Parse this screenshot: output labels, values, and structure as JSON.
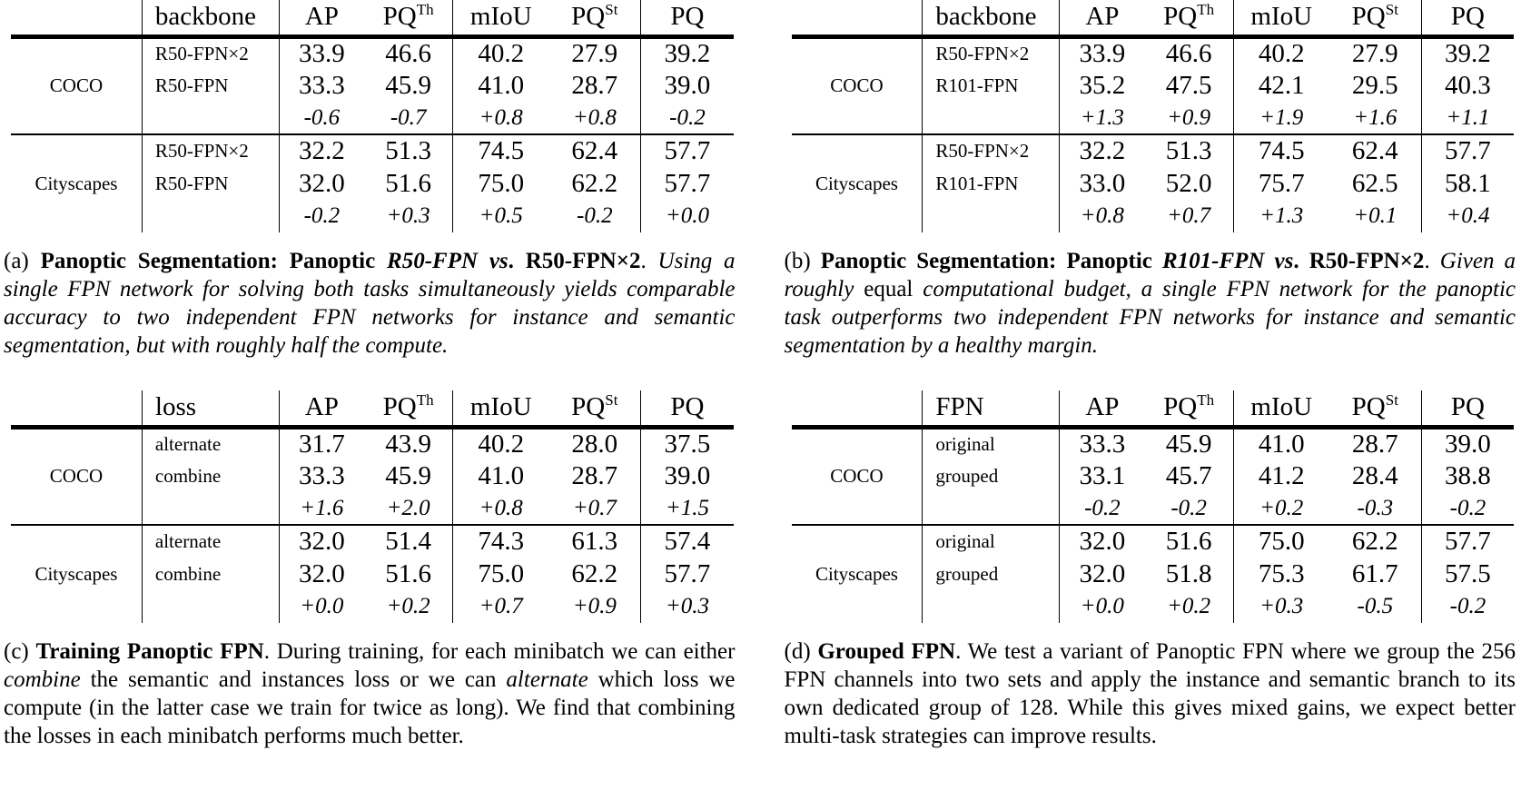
{
  "page": {
    "background": "#ffffff",
    "text_color": "#000000"
  },
  "panels": [
    {
      "label": "a",
      "table": {
        "sublabel_header": "backbone",
        "headers": [
          {
            "text": "AP",
            "sup": ""
          },
          {
            "text": "PQ",
            "sup": "Th"
          },
          {
            "text": "mIoU",
            "sup": ""
          },
          {
            "text": "PQ",
            "sup": "St"
          },
          {
            "text": "PQ",
            "sup": ""
          }
        ],
        "groups": [
          {
            "label": "COCO",
            "rows": [
              {
                "sublabel": "R50-FPN×2",
                "delta": false,
                "values": [
                  "33.9",
                  "46.6",
                  "40.2",
                  "27.9",
                  "39.2"
                ]
              },
              {
                "sublabel": "R50-FPN",
                "delta": false,
                "values": [
                  "33.3",
                  "45.9",
                  "41.0",
                  "28.7",
                  "39.0"
                ]
              },
              {
                "sublabel": "",
                "delta": true,
                "values": [
                  "-0.6",
                  "-0.7",
                  "+0.8",
                  "+0.8",
                  "-0.2"
                ]
              }
            ]
          },
          {
            "label": "Cityscapes",
            "rows": [
              {
                "sublabel": "R50-FPN×2",
                "delta": false,
                "values": [
                  "32.2",
                  "51.3",
                  "74.5",
                  "62.4",
                  "57.7"
                ]
              },
              {
                "sublabel": "R50-FPN",
                "delta": false,
                "values": [
                  "32.0",
                  "51.6",
                  "75.0",
                  "62.2",
                  "57.7"
                ]
              },
              {
                "sublabel": "",
                "delta": true,
                "values": [
                  "-0.2",
                  "+0.3",
                  "+0.5",
                  "-0.2",
                  "+0.0"
                ]
              }
            ]
          }
        ]
      },
      "caption": [
        {
          "t": "(a) ",
          "s": "n"
        },
        {
          "t": "Panoptic Segmentation: Panoptic ",
          "s": "b"
        },
        {
          "t": "R50-FPN vs",
          "s": "bi"
        },
        {
          "t": ". ",
          "s": "b"
        },
        {
          "t": "R50-FPN×2",
          "s": "b"
        },
        {
          "t": ". ",
          "s": "n"
        },
        {
          "t": "Using a single FPN network for solving both tasks simultaneously yields comparable accuracy to two independent FPN networks for instance and semantic segmentation, but with roughly half the compute.",
          "s": "i"
        }
      ]
    },
    {
      "label": "b",
      "table": {
        "sublabel_header": "backbone",
        "headers": [
          {
            "text": "AP",
            "sup": ""
          },
          {
            "text": "PQ",
            "sup": "Th"
          },
          {
            "text": "mIoU",
            "sup": ""
          },
          {
            "text": "PQ",
            "sup": "St"
          },
          {
            "text": "PQ",
            "sup": ""
          }
        ],
        "groups": [
          {
            "label": "COCO",
            "rows": [
              {
                "sublabel": "R50-FPN×2",
                "delta": false,
                "values": [
                  "33.9",
                  "46.6",
                  "40.2",
                  "27.9",
                  "39.2"
                ]
              },
              {
                "sublabel": "R101-FPN",
                "delta": false,
                "values": [
                  "35.2",
                  "47.5",
                  "42.1",
                  "29.5",
                  "40.3"
                ]
              },
              {
                "sublabel": "",
                "delta": true,
                "values": [
                  "+1.3",
                  "+0.9",
                  "+1.9",
                  "+1.6",
                  "+1.1"
                ]
              }
            ]
          },
          {
            "label": "Cityscapes",
            "rows": [
              {
                "sublabel": "R50-FPN×2",
                "delta": false,
                "values": [
                  "32.2",
                  "51.3",
                  "74.5",
                  "62.4",
                  "57.7"
                ]
              },
              {
                "sublabel": "R101-FPN",
                "delta": false,
                "values": [
                  "33.0",
                  "52.0",
                  "75.7",
                  "62.5",
                  "58.1"
                ]
              },
              {
                "sublabel": "",
                "delta": true,
                "values": [
                  "+0.8",
                  "+0.7",
                  "+1.3",
                  "+0.1",
                  "+0.4"
                ]
              }
            ]
          }
        ]
      },
      "caption": [
        {
          "t": "(b) ",
          "s": "n"
        },
        {
          "t": "Panoptic Segmentation: Panoptic ",
          "s": "b"
        },
        {
          "t": "R101-FPN vs",
          "s": "bi"
        },
        {
          "t": ". ",
          "s": "b"
        },
        {
          "t": "R50-FPN×2",
          "s": "b"
        },
        {
          "t": ". ",
          "s": "n"
        },
        {
          "t": "Given a roughly ",
          "s": "i"
        },
        {
          "t": "equal",
          "s": "n"
        },
        {
          "t": " computational budget, a single FPN network for the panoptic task outperforms two independent FPN networks for instance and semantic segmentation by a healthy margin.",
          "s": "i"
        }
      ]
    },
    {
      "label": "c",
      "table": {
        "sublabel_header": "loss",
        "headers": [
          {
            "text": "AP",
            "sup": ""
          },
          {
            "text": "PQ",
            "sup": "Th"
          },
          {
            "text": "mIoU",
            "sup": ""
          },
          {
            "text": "PQ",
            "sup": "St"
          },
          {
            "text": "PQ",
            "sup": ""
          }
        ],
        "groups": [
          {
            "label": "COCO",
            "rows": [
              {
                "sublabel": "alternate",
                "delta": false,
                "values": [
                  "31.7",
                  "43.9",
                  "40.2",
                  "28.0",
                  "37.5"
                ]
              },
              {
                "sublabel": "combine",
                "delta": false,
                "values": [
                  "33.3",
                  "45.9",
                  "41.0",
                  "28.7",
                  "39.0"
                ]
              },
              {
                "sublabel": "",
                "delta": true,
                "values": [
                  "+1.6",
                  "+2.0",
                  "+0.8",
                  "+0.7",
                  "+1.5"
                ]
              }
            ]
          },
          {
            "label": "Cityscapes",
            "rows": [
              {
                "sublabel": "alternate",
                "delta": false,
                "values": [
                  "32.0",
                  "51.4",
                  "74.3",
                  "61.3",
                  "57.4"
                ]
              },
              {
                "sublabel": "combine",
                "delta": false,
                "values": [
                  "32.0",
                  "51.6",
                  "75.0",
                  "62.2",
                  "57.7"
                ]
              },
              {
                "sublabel": "",
                "delta": true,
                "values": [
                  "+0.0",
                  "+0.2",
                  "+0.7",
                  "+0.9",
                  "+0.3"
                ]
              }
            ]
          }
        ]
      },
      "caption": [
        {
          "t": "(c) ",
          "s": "n"
        },
        {
          "t": "Training Panoptic FPN",
          "s": "b"
        },
        {
          "t": ". During training, for each minibatch we can either ",
          "s": "n"
        },
        {
          "t": "combine",
          "s": "i"
        },
        {
          "t": " the semantic and instances loss or we can ",
          "s": "n"
        },
        {
          "t": "alternate",
          "s": "i"
        },
        {
          "t": " which loss we compute (in the latter case we train for twice as long). We find that combining the losses in each minibatch performs much better.",
          "s": "n"
        }
      ]
    },
    {
      "label": "d",
      "table": {
        "sublabel_header": "FPN",
        "headers": [
          {
            "text": "AP",
            "sup": ""
          },
          {
            "text": "PQ",
            "sup": "Th"
          },
          {
            "text": "mIoU",
            "sup": ""
          },
          {
            "text": "PQ",
            "sup": "St"
          },
          {
            "text": "PQ",
            "sup": ""
          }
        ],
        "groups": [
          {
            "label": "COCO",
            "rows": [
              {
                "sublabel": "original",
                "delta": false,
                "values": [
                  "33.3",
                  "45.9",
                  "41.0",
                  "28.7",
                  "39.0"
                ]
              },
              {
                "sublabel": "grouped",
                "delta": false,
                "values": [
                  "33.1",
                  "45.7",
                  "41.2",
                  "28.4",
                  "38.8"
                ]
              },
              {
                "sublabel": "",
                "delta": true,
                "values": [
                  "-0.2",
                  "-0.2",
                  "+0.2",
                  "-0.3",
                  "-0.2"
                ]
              }
            ]
          },
          {
            "label": "Cityscapes",
            "rows": [
              {
                "sublabel": "original",
                "delta": false,
                "values": [
                  "32.0",
                  "51.6",
                  "75.0",
                  "62.2",
                  "57.7"
                ]
              },
              {
                "sublabel": "grouped",
                "delta": false,
                "values": [
                  "32.0",
                  "51.8",
                  "75.3",
                  "61.7",
                  "57.5"
                ]
              },
              {
                "sublabel": "",
                "delta": true,
                "values": [
                  "+0.0",
                  "+0.2",
                  "+0.3",
                  "-0.5",
                  "-0.2"
                ]
              }
            ]
          }
        ]
      },
      "caption": [
        {
          "t": "(d) ",
          "s": "n"
        },
        {
          "t": "Grouped FPN",
          "s": "b"
        },
        {
          "t": ". We test a variant of Panoptic FPN where we group the 256 FPN channels into two sets and apply the instance and semantic branch to its own dedicated group of 128. While this gives mixed gains, we expect better multi-task strategies can improve results.",
          "s": "n"
        }
      ]
    }
  ]
}
